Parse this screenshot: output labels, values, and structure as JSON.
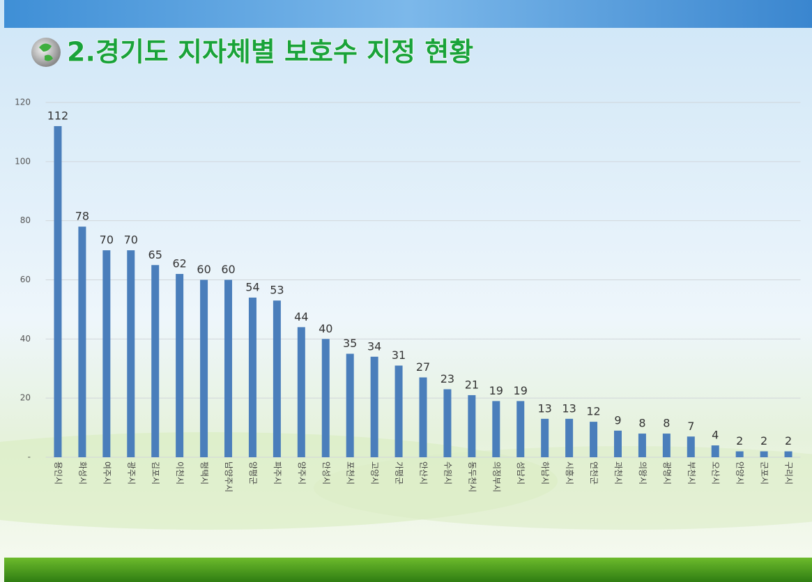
{
  "chart_data": {
    "type": "bar",
    "title": "2.경기도 지자체별 보호수 지정 현황",
    "categories": [
      "용인시",
      "화성시",
      "여주시",
      "광주시",
      "김포시",
      "이천시",
      "평택시",
      "남양주시",
      "양평군",
      "파주시",
      "양주시",
      "안성시",
      "포천시",
      "고양시",
      "가평군",
      "안산시",
      "수원시",
      "동두천시",
      "의정부시",
      "성남시",
      "하남시",
      "시흥시",
      "연천군",
      "과천시",
      "의왕시",
      "광명시",
      "부천시",
      "오산시",
      "안양시",
      "군포시",
      "구리시"
    ],
    "values": [
      112,
      78,
      70,
      70,
      65,
      62,
      60,
      60,
      54,
      53,
      44,
      40,
      35,
      34,
      31,
      27,
      23,
      21,
      19,
      19,
      13,
      13,
      12,
      9,
      8,
      8,
      7,
      4,
      2,
      2,
      2
    ],
    "color": "#4a7ebb",
    "ylim": [
      0,
      120
    ],
    "yticks": [
      {
        "value": 0,
        "label": "-"
      },
      20,
      40,
      60,
      80,
      100,
      120
    ],
    "grid": true
  }
}
